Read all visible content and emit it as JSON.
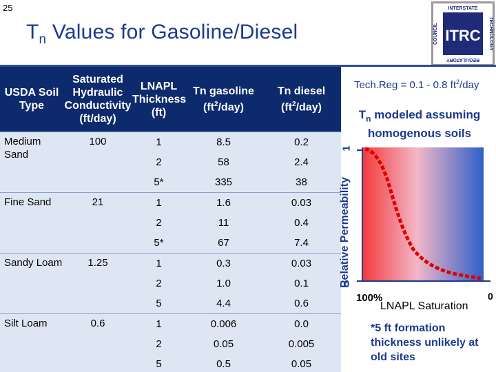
{
  "slide_number": "25",
  "title": {
    "prefix": "T",
    "sub": "n",
    "rest": " Values for Gasoline/Diesel"
  },
  "logo": {
    "text": "ITRC",
    "top": "INTERSTATE",
    "right": "TECHNOLOGY",
    "bottom": "REGULATORY",
    "left": "COUNCIL"
  },
  "table": {
    "headers": {
      "soil": "USDA Soil Type",
      "k": "Saturated Hydraulic Conductivity (ft/day)",
      "thickness": "LNAPL Thickness (ft)",
      "gas": {
        "main": "Tn gasoline",
        "unit_pre": "(ft",
        "unit_sup": "2",
        "unit_post": "/day)"
      },
      "diesel": {
        "main": "Tn diesel",
        "unit_pre": "(ft",
        "unit_sup": "2",
        "unit_post": "/day)"
      }
    },
    "groups": [
      {
        "soil": "Medium Sand",
        "k": "100",
        "rows": [
          {
            "thickness": "1",
            "gas": "8.5",
            "diesel": "0.2"
          },
          {
            "thickness": "2",
            "gas": "58",
            "diesel": "2.4"
          },
          {
            "thickness": "5*",
            "gas": "335",
            "diesel": "38"
          }
        ]
      },
      {
        "soil": "Fine Sand",
        "k": "21",
        "rows": [
          {
            "thickness": "1",
            "gas": "1.6",
            "diesel": "0.03"
          },
          {
            "thickness": "2",
            "gas": "11",
            "diesel": "0.4"
          },
          {
            "thickness": "5*",
            "gas": "67",
            "diesel": "7.4"
          }
        ]
      },
      {
        "soil": "Sandy Loam",
        "k": "1.25",
        "rows": [
          {
            "thickness": "1",
            "gas": "0.3",
            "diesel": "0.03"
          },
          {
            "thickness": "2",
            "gas": "1.0",
            "diesel": "0.1"
          },
          {
            "thickness": "5",
            "gas": "4.4",
            "diesel": "0.6"
          }
        ]
      },
      {
        "soil": "Silt Loam",
        "k": "0.6",
        "rows": [
          {
            "thickness": "1",
            "gas": "0.006",
            "diesel": "0.0"
          },
          {
            "thickness": "2",
            "gas": "0.05",
            "diesel": "0.005"
          },
          {
            "thickness": "5",
            "gas": "0.5",
            "diesel": "0.05"
          }
        ]
      }
    ]
  },
  "techreg": {
    "pre": "Tech.Reg = 0.1 - 0.8 ft",
    "sup": "2",
    "post": "/day"
  },
  "model_note": {
    "prefix": "T",
    "sub": "n",
    "rest": " modeled assuming homogenous soils"
  },
  "chart": {
    "ylabel": "Relative Permeability",
    "y_top": "1",
    "y_bottom": "0",
    "x_left": "100%",
    "x_right": "0",
    "xlabel": "LNAPL Saturation"
  },
  "footnote": "*5 ft formation thickness unlikely at old sites",
  "colors": {
    "title": "#1a3a8f",
    "header_bg": "#0d2a6c",
    "table_bg": "#dfe6f3",
    "curve": "#e00000"
  }
}
